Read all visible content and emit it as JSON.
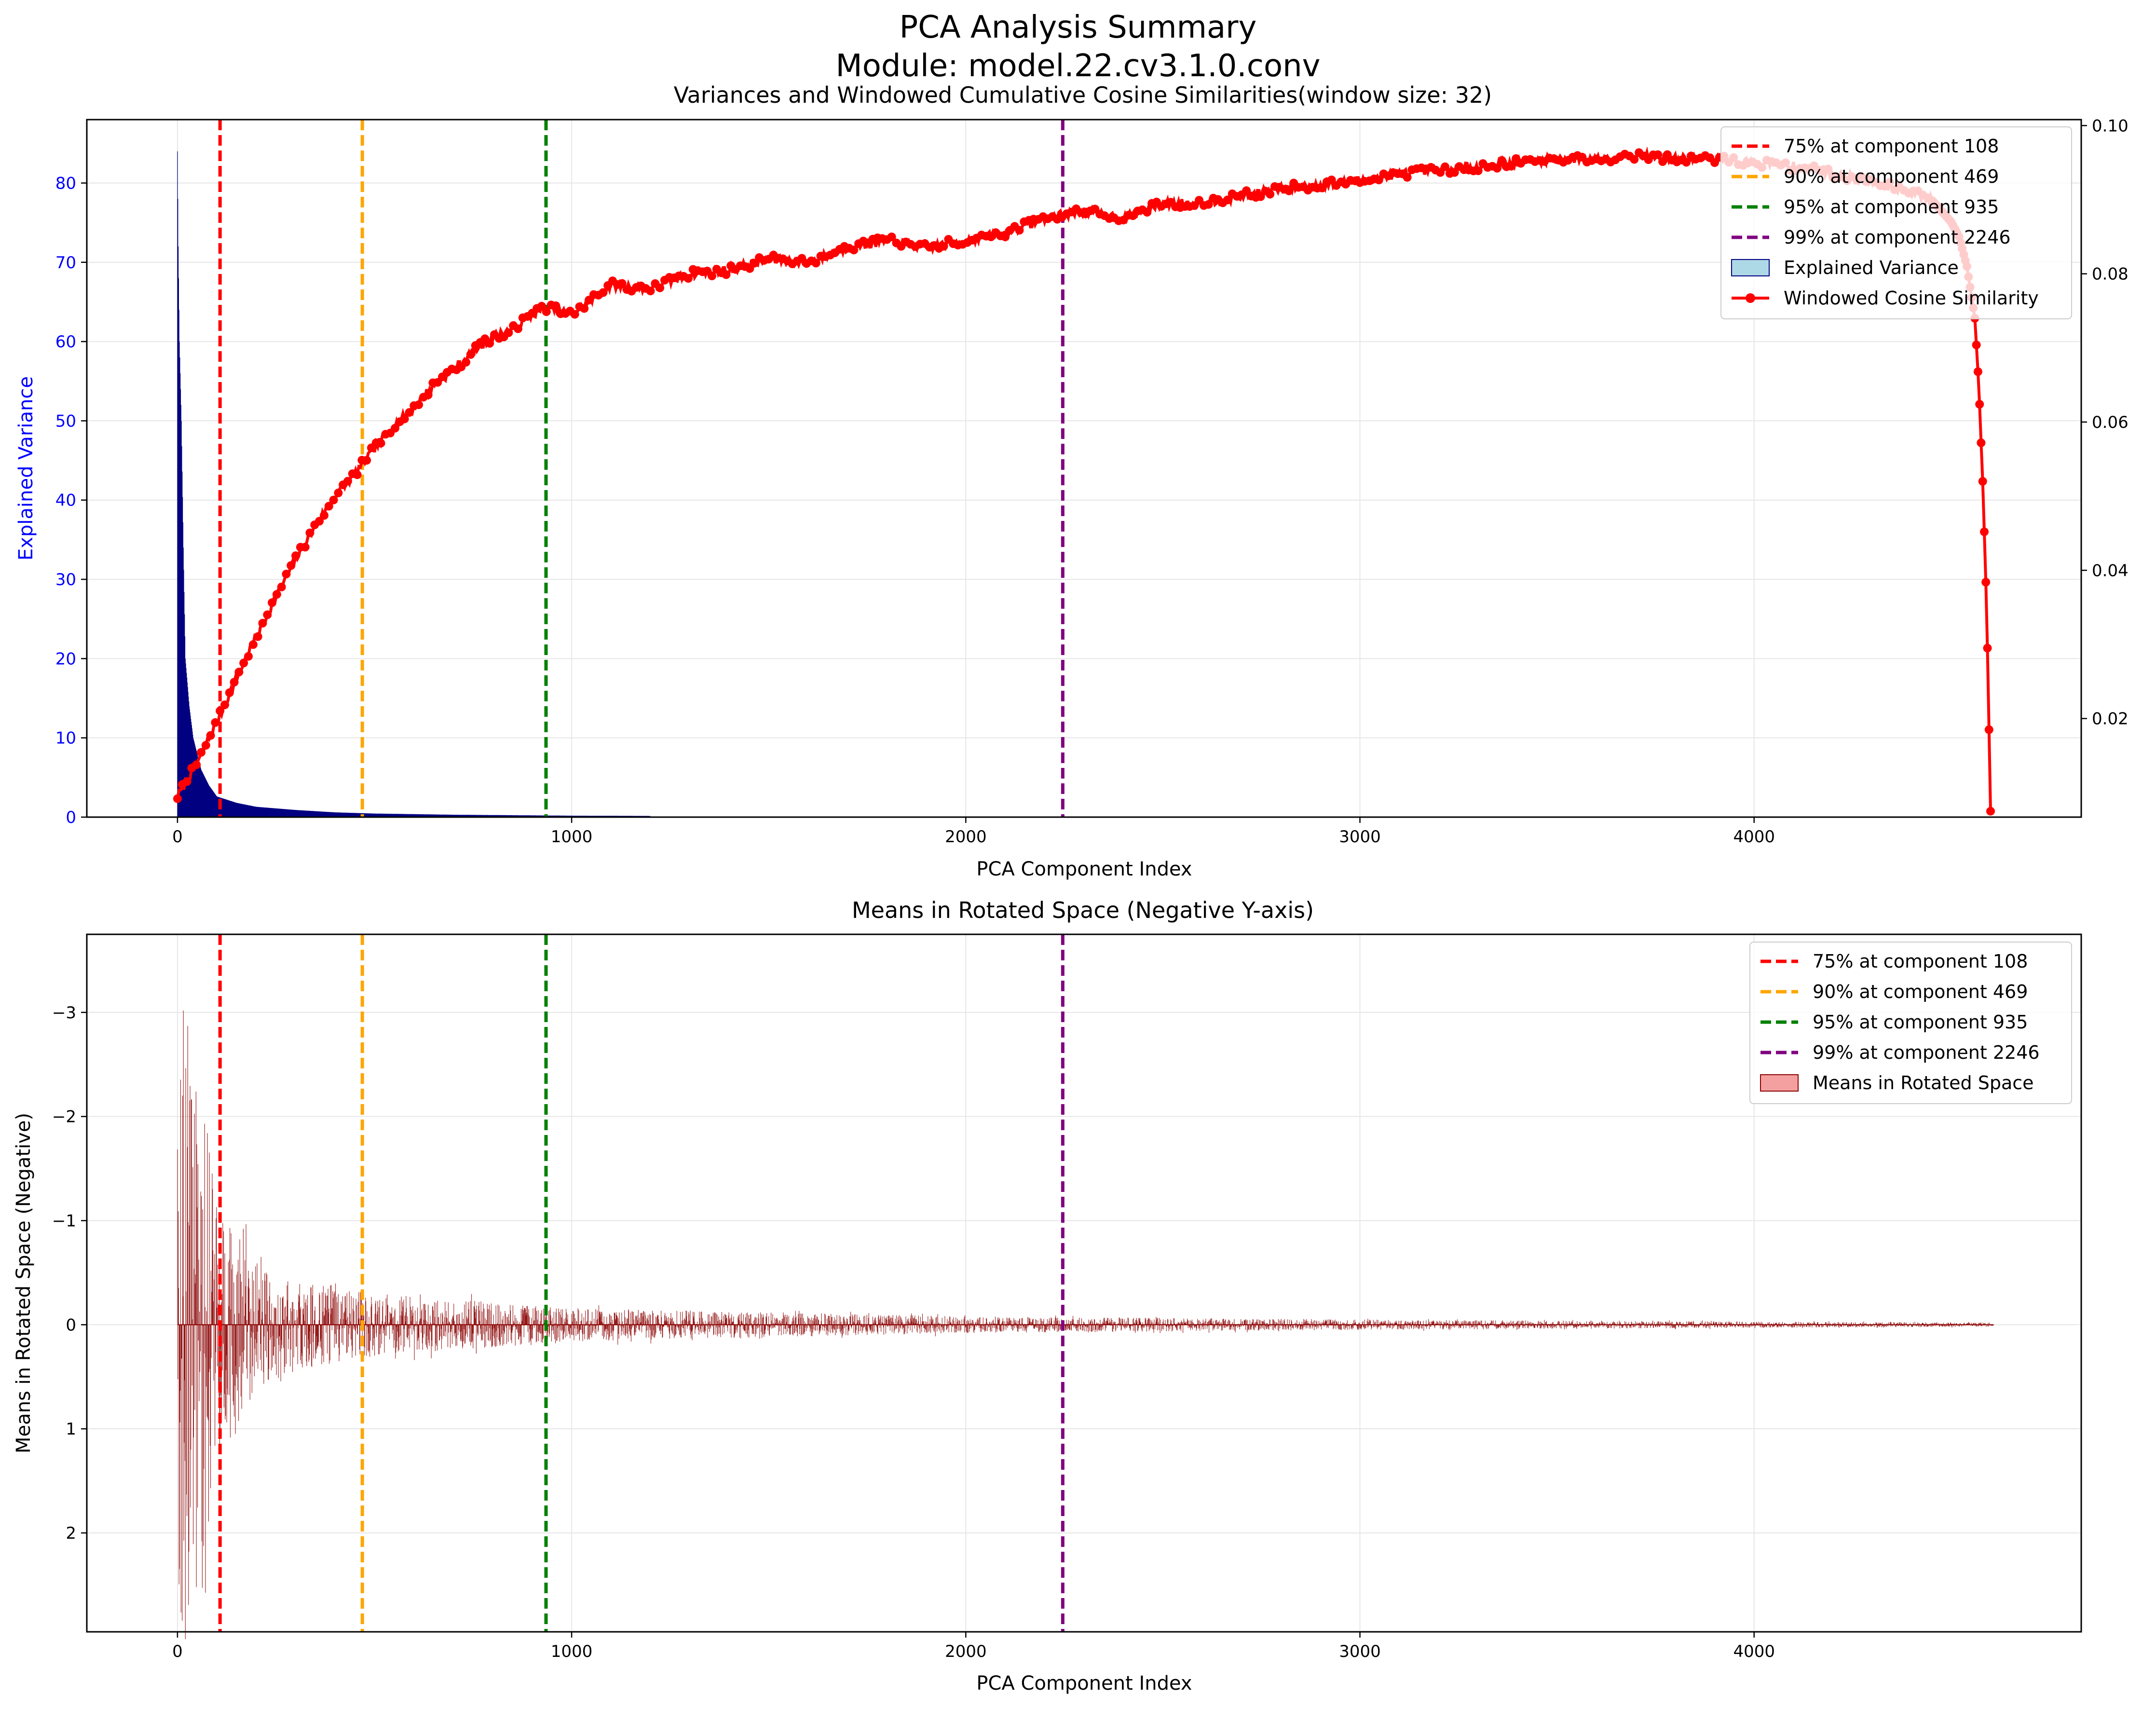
{
  "figure": {
    "title_line1": "PCA Analysis Summary",
    "title_line2": "Module: model.22.cv3.1.0.conv"
  },
  "colors": {
    "red": "#ff0000",
    "orange": "#ffa500",
    "green": "#008000",
    "purple": "#800080",
    "variance_bar": "#000080",
    "variance_legend_fill": "#add8e6",
    "cosine_line": "#ff0000",
    "means_bar": "#8b0000",
    "means_legend_fill": "#f4a0a0",
    "left_axis_text": "#0000ff"
  },
  "chart_data": [
    {
      "type": "bar",
      "title": "Variances and Windowed Cumulative Cosine Similarities(window size: 32)",
      "xlabel": "PCA Component Index",
      "ylabel": "Explained Variance",
      "xlim": [
        -230,
        4830
      ],
      "ylim": [
        0,
        88
      ],
      "ylim_right": [
        0.0067,
        0.1008
      ],
      "xticks": [
        0,
        1000,
        2000,
        3000,
        4000
      ],
      "yticks": [
        0,
        10,
        20,
        30,
        40,
        50,
        60,
        70,
        80
      ],
      "yticks_right": [
        0.02,
        0.04,
        0.06,
        0.08,
        0.1
      ],
      "grid": true,
      "legend_position": "top-right",
      "thresholds": [
        {
          "label": "75% at component 108",
          "x": 108,
          "color": "red"
        },
        {
          "label": "90% at component 469",
          "x": 469,
          "color": "orange"
        },
        {
          "label": "95% at component 935",
          "x": 935,
          "color": "green"
        },
        {
          "label": "99% at component 2246",
          "x": 2246,
          "color": "purple"
        }
      ],
      "series": [
        {
          "name": "Explained Variance",
          "type": "bar",
          "axis": "left",
          "n_components": 4608,
          "x": [
            0,
            2,
            5,
            10,
            15,
            20,
            30,
            40,
            50,
            60,
            80,
            100,
            150,
            200,
            300,
            400,
            500,
            700,
            1000,
            1500,
            2000,
            3000,
            4608
          ],
          "values": [
            84,
            72,
            60,
            50,
            34,
            20,
            14,
            10,
            8,
            6,
            4,
            2.6,
            1.8,
            1.3,
            0.9,
            0.6,
            0.45,
            0.3,
            0.18,
            0.1,
            0.06,
            0.03,
            0.01
          ]
        },
        {
          "name": "Windowed Cosine Similarity",
          "type": "line",
          "axis": "right",
          "x": [
            0,
            50,
            100,
            150,
            200,
            250,
            300,
            350,
            400,
            450,
            500,
            550,
            600,
            650,
            700,
            750,
            800,
            850,
            900,
            935,
            1000,
            1050,
            1100,
            1200,
            1300,
            1400,
            1500,
            1600,
            1700,
            1800,
            1900,
            2000,
            2100,
            2200,
            2300,
            2400,
            2500,
            2600,
            2700,
            2800,
            2900,
            3000,
            3100,
            3200,
            3300,
            3400,
            3500,
            3600,
            3700,
            3800,
            3900,
            4000,
            4100,
            4200,
            4300,
            4400,
            4450,
            4500,
            4520,
            4540,
            4560,
            4570,
            4580,
            4590,
            4600
          ],
          "values": [
            0.0095,
            0.014,
            0.0195,
            0.0255,
            0.031,
            0.0365,
            0.0415,
            0.046,
            0.05,
            0.053,
            0.0565,
            0.0595,
            0.062,
            0.065,
            0.067,
            0.0695,
            0.0715,
            0.0725,
            0.0745,
            0.0755,
            0.0745,
            0.0765,
            0.0785,
            0.078,
            0.08,
            0.0805,
            0.082,
            0.0815,
            0.0835,
            0.0845,
            0.0835,
            0.0845,
            0.0855,
            0.0875,
            0.0885,
            0.0875,
            0.0895,
            0.0895,
            0.0905,
            0.0915,
            0.092,
            0.0925,
            0.0935,
            0.094,
            0.0945,
            0.095,
            0.0955,
            0.0955,
            0.096,
            0.0955,
            0.0955,
            0.095,
            0.0945,
            0.0935,
            0.0925,
            0.091,
            0.09,
            0.087,
            0.085,
            0.081,
            0.074,
            0.065,
            0.052,
            0.035,
            0.0075
          ]
        }
      ]
    },
    {
      "type": "bar",
      "title": "Means in Rotated Space (Negative Y-axis)",
      "xlabel": "PCA Component Index",
      "ylabel": "Means in Rotated Space (Negative)",
      "xlim": [
        -230,
        4830
      ],
      "ylim": [
        -3.75,
        2.95
      ],
      "y_inverted": true,
      "xticks": [
        0,
        1000,
        2000,
        3000,
        4000
      ],
      "yticks": [
        -3,
        -2,
        -1,
        0,
        1,
        2
      ],
      "ytick_labels": [
        "−3",
        "−2",
        "−1",
        "0",
        "1",
        "2"
      ],
      "grid": true,
      "legend_position": "top-right",
      "thresholds": [
        {
          "label": "75% at component 108",
          "x": 108,
          "color": "red"
        },
        {
          "label": "90% at component 469",
          "x": 469,
          "color": "orange"
        },
        {
          "label": "95% at component 935",
          "x": 935,
          "color": "green"
        },
        {
          "label": "99% at component 2246",
          "x": 2246,
          "color": "purple"
        }
      ],
      "series": [
        {
          "name": "Means in Rotated Space",
          "type": "bar",
          "n_components": 4608,
          "x": [
            0,
            50,
            100,
            200,
            300,
            500,
            1000,
            1500,
            2000,
            3000,
            4000,
            4608
          ],
          "amplitude": [
            3.4,
            2.6,
            1.4,
            0.6,
            0.45,
            0.3,
            0.16,
            0.12,
            0.08,
            0.05,
            0.03,
            0.02
          ]
        }
      ]
    }
  ]
}
